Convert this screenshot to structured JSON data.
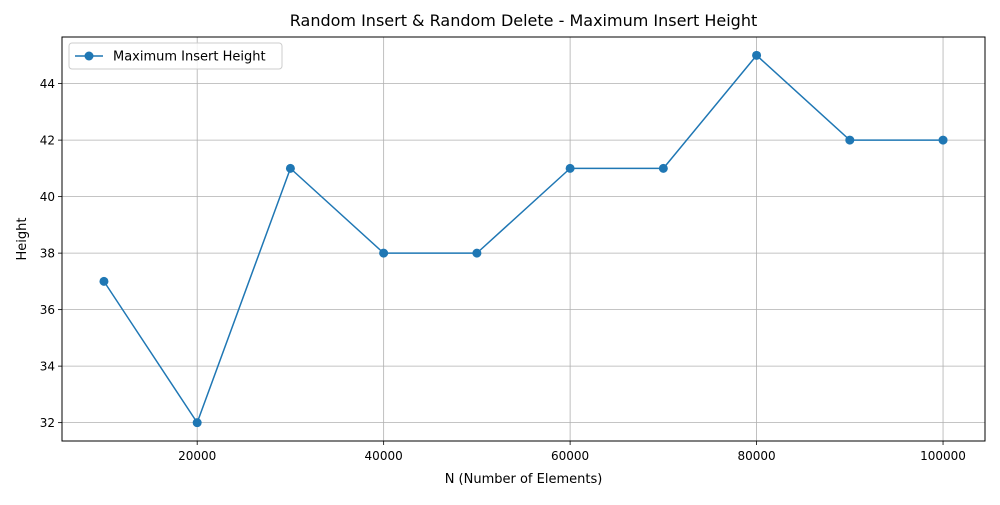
{
  "chart_data": {
    "type": "line",
    "title": "Random Insert & Random Delete - Maximum Insert Height",
    "xlabel": "N (Number of Elements)",
    "ylabel": "Height",
    "xlim": [
      5500,
      104500
    ],
    "ylim": [
      31.35,
      45.65
    ],
    "xticks": [
      20000,
      40000,
      60000,
      80000,
      100000
    ],
    "xtick_labels": [
      "20000",
      "40000",
      "60000",
      "80000",
      "100000"
    ],
    "yticks": [
      32,
      34,
      36,
      38,
      40,
      42,
      44
    ],
    "ytick_labels": [
      "32",
      "34",
      "36",
      "38",
      "40",
      "42",
      "44"
    ],
    "grid": true,
    "legend_position": "upper-left",
    "line_color": "#1f77b4",
    "marker": "circle",
    "series": [
      {
        "name": "Maximum Insert Height",
        "x": [
          10000,
          20000,
          30000,
          40000,
          50000,
          60000,
          70000,
          80000,
          90000,
          100000
        ],
        "y": [
          37,
          32,
          41,
          38,
          38,
          41,
          41,
          45,
          42,
          42
        ]
      }
    ]
  }
}
